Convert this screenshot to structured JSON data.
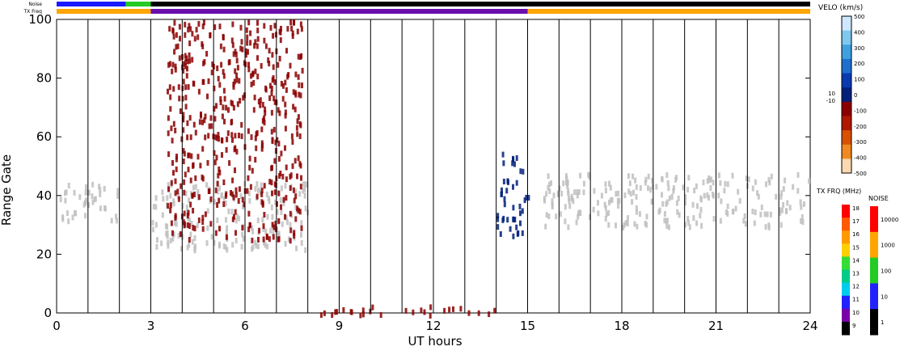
{
  "chart_data": {
    "type": "heatmap",
    "title": "",
    "xlabel": "UT hours",
    "ylabel": "Range Gate",
    "xlim": [
      0,
      24
    ],
    "ylim": [
      0,
      100
    ],
    "x_ticks": [
      "0",
      "3",
      "6",
      "9",
      "12",
      "15",
      "18",
      "21",
      "24"
    ],
    "x_tick_values": [
      0,
      3,
      6,
      9,
      12,
      15,
      18,
      21,
      24
    ],
    "y_ticks": [
      "0",
      "20",
      "40",
      "60",
      "80",
      "100"
    ],
    "y_tick_values": [
      0,
      20,
      40,
      60,
      80,
      100
    ],
    "scan_boundary_hours": [
      1,
      2,
      3,
      4,
      5,
      6,
      7,
      8,
      9,
      10,
      11,
      12,
      13,
      14,
      15,
      16,
      17,
      18,
      19,
      20,
      21,
      22,
      23
    ],
    "top_bars": {
      "noise_label": "Noise",
      "txfreq_label": "TX Freq",
      "txfreq_segments": [
        {
          "start": 0,
          "end": 3,
          "color": "#ffa500"
        },
        {
          "start": 3,
          "end": 15,
          "color": "#6a0dad"
        },
        {
          "start": 15,
          "end": 24,
          "color": "#ffa500"
        }
      ],
      "noise_segments": [
        {
          "start": 0,
          "end": 2.2,
          "color": "#1a1aff"
        },
        {
          "start": 2.2,
          "end": 3,
          "color": "#22cc22"
        },
        {
          "start": 3,
          "end": 24,
          "color": "#000000"
        }
      ]
    },
    "velocity_scale": {
      "title": "VELO (km/s)",
      "labels": [
        "500",
        "400",
        "300",
        "200",
        "100",
        "0",
        "-100",
        "-200",
        "-300",
        "-400",
        "-500"
      ],
      "values": [
        500,
        400,
        300,
        200,
        100,
        0,
        -100,
        -200,
        -300,
        -400,
        -500
      ],
      "side_labels": [
        "10",
        "-10"
      ],
      "colors": [
        "#cfe8ff",
        "#7ec8f0",
        "#3fa0e0",
        "#1e6fd0",
        "#0a3ab0",
        "#00207a",
        "#8b0000",
        "#b01800",
        "#d85000",
        "#f08a20",
        "#fbd8b0"
      ]
    },
    "txfreq_scale": {
      "title": "TX FRQ (MHz)",
      "labels": [
        "18",
        "17",
        "16",
        "15",
        "14",
        "13",
        "12",
        "11",
        "10",
        "9"
      ],
      "colors": [
        "#ff0000",
        "#ff5a00",
        "#ff9a00",
        "#ffd000",
        "#33dd33",
        "#00cc88",
        "#00ccee",
        "#2222ff",
        "#7a00aa",
        "#000000"
      ]
    },
    "noise_scale": {
      "title": "NOISE",
      "labels": [
        "10000",
        "1000",
        "100",
        "10",
        "1"
      ],
      "colors": [
        "#ff0000",
        "#ffa500",
        "#22cc22",
        "#2222ff",
        "#000000"
      ]
    },
    "features": [
      {
        "name": "ground-scatter-a",
        "hours": [
          0,
          2
        ],
        "gates": [
          32,
          45
        ],
        "color": "#c0c0c0"
      },
      {
        "name": "ground-scatter-b",
        "hours": [
          15.5,
          24
        ],
        "gates": [
          30,
          48
        ],
        "color": "#c0c0c0"
      },
      {
        "name": "ground-scatter-c",
        "hours": [
          3,
          8
        ],
        "gates": [
          22,
          45
        ],
        "color": "#c0c0c0"
      },
      {
        "name": "ionospheric-arc-a",
        "hours": [
          3.5,
          7.8
        ],
        "gates": [
          25,
          100
        ],
        "color": "#8b0000"
      },
      {
        "name": "ionospheric-blob-a",
        "hours": [
          14,
          15
        ],
        "gates": [
          27,
          55
        ],
        "color": "#00207a"
      },
      {
        "name": "near-range-echoes",
        "hours": [
          8,
          14
        ],
        "gates": [
          0,
          3
        ],
        "color": "#8b0000"
      }
    ]
  }
}
